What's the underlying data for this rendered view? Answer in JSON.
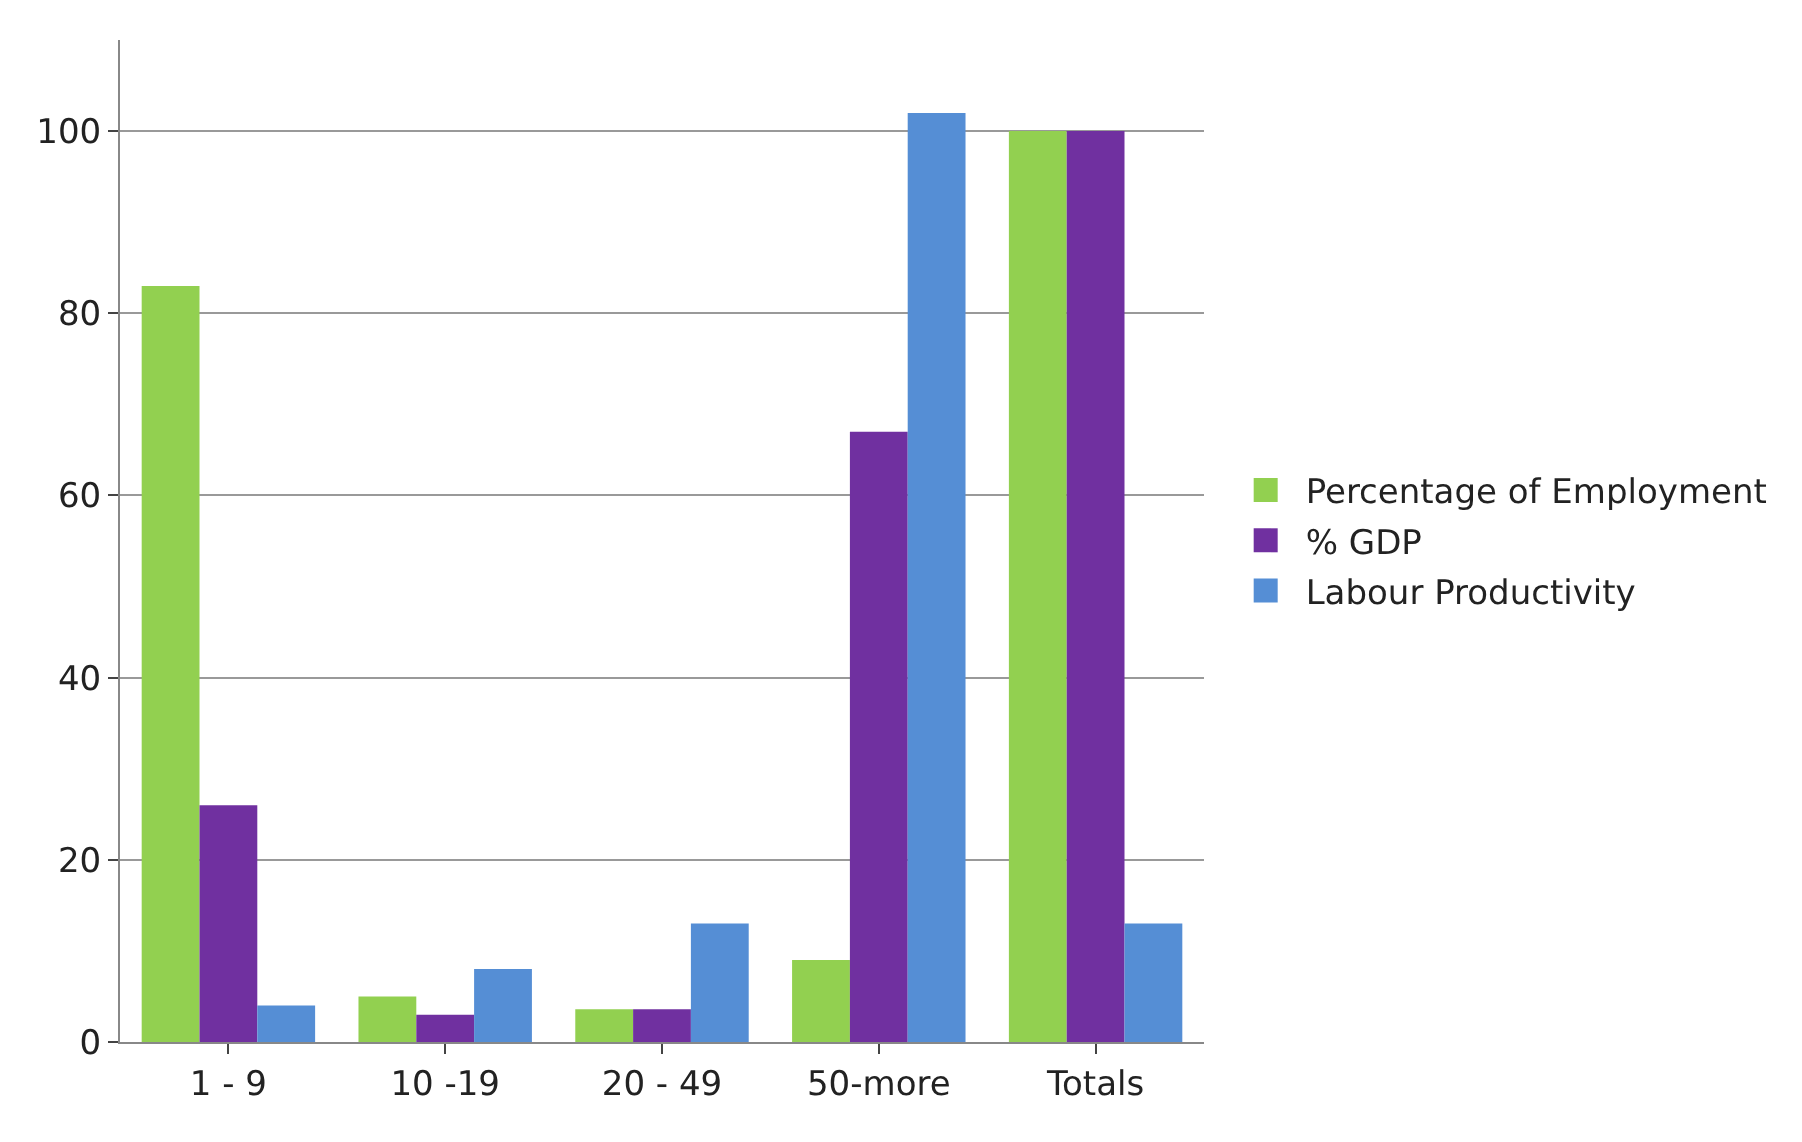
{
  "chart_data": {
    "type": "bar",
    "categories": [
      "1 - 9",
      "10 -19",
      "20 - 49",
      "50-more",
      "Totals"
    ],
    "series": [
      {
        "name": "Percentage of Employment",
        "color": "#92d050",
        "values": [
          83,
          5,
          3.6,
          9,
          100
        ]
      },
      {
        "name": "% GDP",
        "color": "#7030a0",
        "values": [
          26,
          3,
          3.6,
          67,
          100
        ]
      },
      {
        "name": "Labour Productivity",
        "color": "#558ed5",
        "values": [
          4,
          8,
          13,
          102,
          13
        ]
      }
    ],
    "ylim": [
      0,
      110
    ],
    "yticks": [
      0,
      20,
      40,
      60,
      80,
      100
    ],
    "grid": "y",
    "legend": "right"
  }
}
